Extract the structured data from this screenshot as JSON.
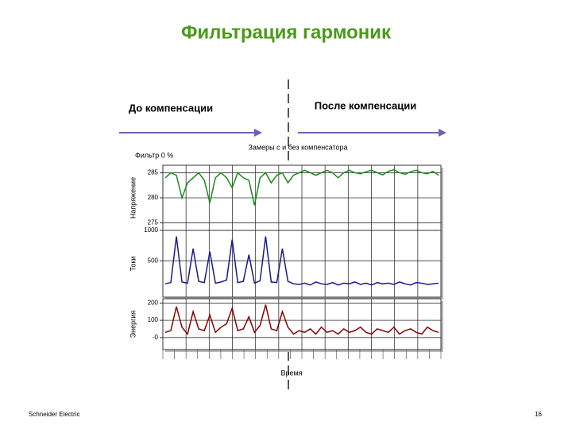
{
  "title": "Фильтрация гармоник",
  "before_label": "До компенсации",
  "after_label": "После компенсации",
  "subtitle": "Замеры с и без компенсатора",
  "filter_label": "Фильтр  0 %",
  "x_label": "Время",
  "footer_left": "Schneider Electric",
  "page_number": "16",
  "chart_data": [
    {
      "type": "line",
      "ylabel": "Напряжение",
      "color": "#1a8a1a",
      "ylim": [
        273.5,
        286.5
      ],
      "yticks": [
        275,
        280,
        285
      ],
      "grid": true,
      "values": [
        284,
        285,
        284.5,
        280,
        283,
        284,
        285,
        283.5,
        279,
        284,
        285,
        284,
        282,
        285,
        284,
        283.5,
        278.5,
        284,
        285,
        283,
        284.5,
        285,
        283,
        284.5,
        285,
        285.5,
        285,
        284.5,
        285,
        285.5,
        285,
        284,
        285,
        285.5,
        285,
        284.8,
        285.2,
        285.5,
        285,
        284.6,
        285.3,
        285.6,
        285,
        284.7,
        285.2,
        285.5,
        285,
        284.8,
        285.3,
        284.5
      ]
    },
    {
      "type": "line",
      "ylabel": "Токи",
      "color": "#1a1a8c",
      "ylim": [
        -100,
        1000
      ],
      "yticks": [
        500,
        1000
      ],
      "grid": true,
      "values": [
        120,
        140,
        900,
        150,
        130,
        700,
        160,
        140,
        650,
        130,
        150,
        180,
        850,
        140,
        160,
        600,
        130,
        170,
        900,
        150,
        140,
        700,
        160,
        120,
        110,
        130,
        100,
        150,
        120,
        110,
        140,
        100,
        130,
        120,
        150,
        110,
        130,
        100,
        140,
        120,
        130,
        110,
        150,
        120,
        100,
        140,
        130,
        110,
        120,
        130
      ]
    },
    {
      "type": "line",
      "ylabel": "Энергия",
      "color": "#8b0000",
      "ylim": [
        -70,
        225
      ],
      "yticks": [
        {
          "value": 0,
          "label": "-0"
        },
        100,
        200
      ],
      "grid": true,
      "values": [
        30,
        40,
        180,
        60,
        20,
        150,
        50,
        40,
        130,
        30,
        60,
        80,
        170,
        40,
        50,
        120,
        30,
        70,
        190,
        50,
        40,
        150,
        60,
        20,
        40,
        30,
        50,
        20,
        60,
        30,
        40,
        20,
        50,
        30,
        40,
        60,
        30,
        20,
        50,
        40,
        30,
        60,
        20,
        40,
        50,
        30,
        20,
        60,
        40,
        30
      ]
    }
  ]
}
